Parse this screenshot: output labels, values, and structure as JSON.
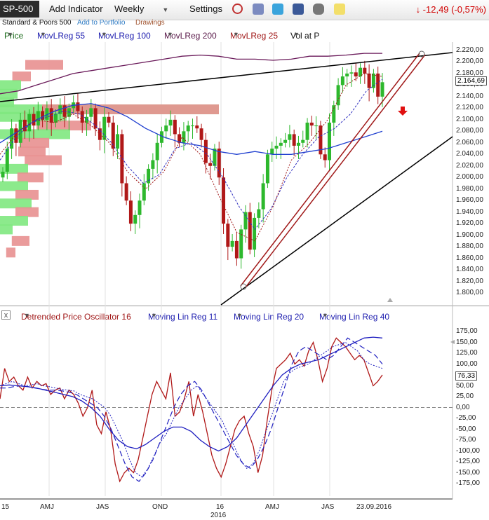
{
  "toolbar": {
    "symbol": "SP-500",
    "add_indicator": "Add Indicator",
    "interval": "Weekly",
    "settings": "Settings",
    "change": "↓ -12,49 (-0,57%)",
    "icons": [
      "alarm-clock-icon",
      "notes-icon",
      "twitter-icon",
      "facebook-icon",
      "binoculars-icon",
      "sticky-note-icon"
    ]
  },
  "subbar": {
    "name": "Standard & Poors 500",
    "add_portfolio": "Add to Portfolio",
    "drawings": "Drawings"
  },
  "legend_price": [
    "Price",
    "MovLReg 55",
    "MovLReg 100",
    "MovLReg 200",
    "MovLReg 25",
    "Vol at P"
  ],
  "legend_osc": [
    "Detrended Price Oscillator 16",
    "Moving Lin Reg 11",
    "Moving Lin Reg 20",
    "Moving Lin Reg 40"
  ],
  "colors": {
    "up": "#2db82d",
    "down": "#b01818",
    "reg55": "#3030c0",
    "reg100": "#2040d0",
    "reg200": "#6a1a5a",
    "reg25": "#a01818",
    "trend": "#000000",
    "channel": "#a01818",
    "vol_up": "#7fe87f",
    "vol_down": "#e89090"
  },
  "price_axis": {
    "ticks": [
      "2.220,00",
      "2.200,00",
      "2.180,00",
      "2.160,00",
      "2.140,00",
      "2.120,00",
      "2.100,00",
      "2.080,00",
      "2.060,00",
      "2.040,00",
      "2.020,00",
      "2.000,00",
      "1.980,00",
      "1.960,00",
      "1.940,00",
      "1.920,00",
      "1.900,00",
      "1.880,00",
      "1.860,00",
      "1.840,00",
      "1.820,00",
      "1.800,00"
    ],
    "last": "2.164,69",
    "ylim": [
      1790,
      2230
    ]
  },
  "osc_axis": {
    "ticks": [
      "175,00",
      "150,00",
      "125,00",
      "100,00",
      "75,00",
      "50,00",
      "25,00",
      "0,00",
      "-25,00",
      "-50,00",
      "-75,00",
      "-100,00",
      "-125,00",
      "-150,00",
      "-175,00"
    ],
    "last": "76,33",
    "ylim": [
      -190,
      190
    ]
  },
  "x_axis": {
    "labels": [
      "15",
      "AMJ",
      "JAS",
      "OND",
      "16",
      "AMJ",
      "JAS",
      "23.09.2016"
    ],
    "year_label": "2016"
  },
  "chart_data": {
    "type": "line",
    "title": "SP-500 Weekly",
    "series": [
      {
        "name": "Price",
        "values": [
          2010,
          2050,
          2085,
          2060,
          2100,
          2080,
          2110,
          2090,
          2115,
          2100,
          2120,
          2095,
          2110,
          2125,
          2105,
          2120,
          2130,
          2115,
          2095,
          2105,
          2120,
          2085,
          2065,
          2105,
          2095,
          2050,
          2075,
          1990,
          1960,
          1920,
          1935,
          1960,
          1990,
          2015,
          2030,
          2060,
          2080,
          2090,
          2100,
          2075,
          2060,
          2080,
          2090,
          2090,
          2085,
          2065,
          2025,
          2020,
          2050,
          2000,
          1920,
          1880,
          1890,
          1860,
          1910,
          1940,
          1875,
          1930,
          1945,
          1990,
          2040,
          2050,
          2055,
          2060,
          2065,
          2075,
          2055,
          2060,
          2065,
          2095,
          2090,
          2090,
          2040,
          2030,
          2095,
          2125,
          2160,
          2175,
          2180,
          2182,
          2175,
          2190,
          2180,
          2155,
          2180,
          2140,
          2165
        ]
      },
      {
        "name": "Detrended Price Oscillator 16",
        "values": [
          20,
          90,
          60,
          70,
          50,
          40,
          70,
          45,
          60,
          50,
          55,
          30,
          40,
          45,
          20,
          40,
          30,
          10,
          -20,
          0,
          40,
          -40,
          -60,
          -10,
          -50,
          -130,
          -170,
          -150,
          -140,
          -150,
          -120,
          -70,
          -20,
          30,
          60,
          40,
          20,
          80,
          -20,
          -10,
          20,
          60,
          -20,
          30,
          -10,
          -60,
          -110,
          -140,
          -160,
          -130,
          -90,
          -50,
          -30,
          -20,
          -60,
          -90,
          -150,
          -110,
          -30,
          40,
          90,
          100,
          110,
          125,
          100,
          110,
          95,
          130,
          150,
          110,
          60,
          90,
          140,
          160,
          150,
          140,
          125,
          110,
          120,
          110,
          80,
          50,
          60,
          75
        ]
      },
      {
        "name": "Moving Lin Reg 11",
        "values": [
          50,
          55,
          60,
          55,
          50,
          52,
          55,
          50,
          48,
          45,
          42,
          40,
          38,
          30,
          25,
          20,
          10,
          0,
          -20,
          -50,
          -80,
          -120,
          -150,
          -160,
          -140,
          -110,
          -80,
          -60,
          -30,
          0,
          20,
          40,
          50,
          30,
          10,
          -10,
          -30,
          -60,
          -90,
          -120,
          -140,
          -130,
          -100,
          -60,
          -20,
          20,
          60,
          80,
          90,
          95,
          100,
          110,
          120,
          130,
          140,
          145,
          150,
          140,
          130,
          110,
          100,
          95,
          90
        ]
      },
      {
        "name": "Moving Lin Reg 20",
        "values": [
          45,
          45,
          48,
          50,
          48,
          45,
          42,
          40,
          40,
          38,
          35,
          30,
          20,
          10,
          0,
          -20,
          -50,
          -90,
          -130,
          -160,
          -170,
          -150,
          -120,
          -80,
          -40,
          0,
          30,
          50,
          60,
          40,
          10,
          -20,
          -50,
          -80,
          -110,
          -130,
          -140,
          -120,
          -90,
          -50,
          0,
          50,
          100,
          130,
          140,
          130,
          120,
          110,
          120,
          140,
          160,
          150,
          140,
          130,
          120,
          100
        ]
      },
      {
        "name": "Moving Lin Reg 40",
        "values": [
          50,
          52,
          50,
          48,
          45,
          40,
          35,
          30,
          25,
          15,
          0,
          -20,
          -50,
          -75,
          -90,
          -95,
          -85,
          -70,
          -55,
          -45,
          -45,
          -55,
          -75,
          -90,
          -100,
          -90,
          -70,
          -40,
          -10,
          20,
          50,
          75,
          90,
          100,
          105,
          110,
          120,
          130,
          140,
          150,
          160,
          162,
          160
        ]
      }
    ],
    "ylabel": "",
    "xlabel": ""
  }
}
